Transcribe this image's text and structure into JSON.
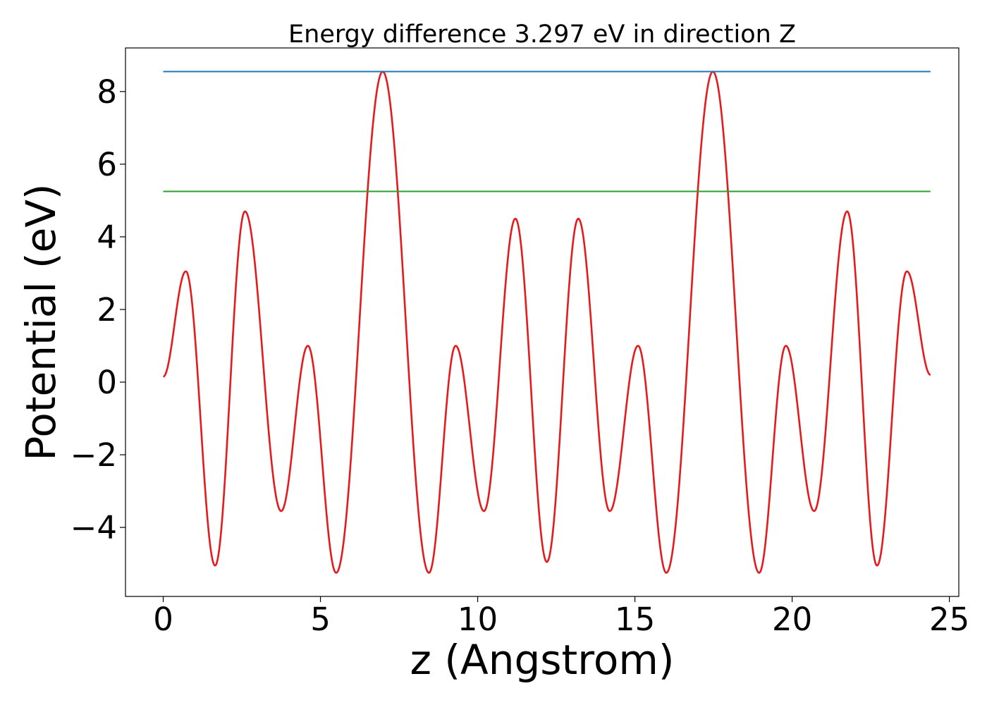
{
  "chart_data": {
    "type": "line",
    "title": "Energy difference 3.297 eV in direction Z",
    "xlabel": "z (Angstrom)",
    "ylabel": "Potential (eV)",
    "xlim": [
      -1.2,
      25.3
    ],
    "ylim": [
      -5.9,
      9.2
    ],
    "x_ticks": [
      0,
      5,
      10,
      15,
      20,
      25
    ],
    "x_tick_labels": [
      "0",
      "5",
      "10",
      "15",
      "20",
      "25"
    ],
    "y_ticks": [
      -4,
      -2,
      0,
      2,
      4,
      6,
      8
    ],
    "y_tick_labels": [
      "−4",
      "−2",
      "0",
      "2",
      "4",
      "6",
      "8"
    ],
    "grid": false,
    "legend": "none",
    "series": [
      {
        "color": "#e41a1c",
        "style": "line",
        "x": [
          0.0,
          0.72,
          1.65,
          2.6,
          3.75,
          4.6,
          5.5,
          6.98,
          8.45,
          9.3,
          10.2,
          11.2,
          12.2,
          13.2,
          14.2,
          15.1,
          16.0,
          17.48,
          18.95,
          19.8,
          20.7,
          21.75,
          22.7,
          23.65,
          24.4
        ],
        "y": [
          0.15,
          3.05,
          -5.05,
          4.7,
          -3.55,
          1.0,
          -5.25,
          8.55,
          -5.25,
          1.0,
          -3.55,
          4.5,
          -4.95,
          4.5,
          -3.55,
          1.0,
          -5.25,
          8.55,
          -5.25,
          1.0,
          -3.55,
          4.7,
          -5.05,
          3.05,
          0.2
        ]
      },
      {
        "color": "#1f77b4",
        "style": "hline",
        "x": [
          0.0,
          24.4
        ],
        "y": [
          8.55,
          8.55
        ]
      },
      {
        "color": "#2ca02c",
        "style": "hline",
        "x": [
          0.0,
          24.4
        ],
        "y": [
          5.25,
          5.25
        ]
      }
    ]
  }
}
